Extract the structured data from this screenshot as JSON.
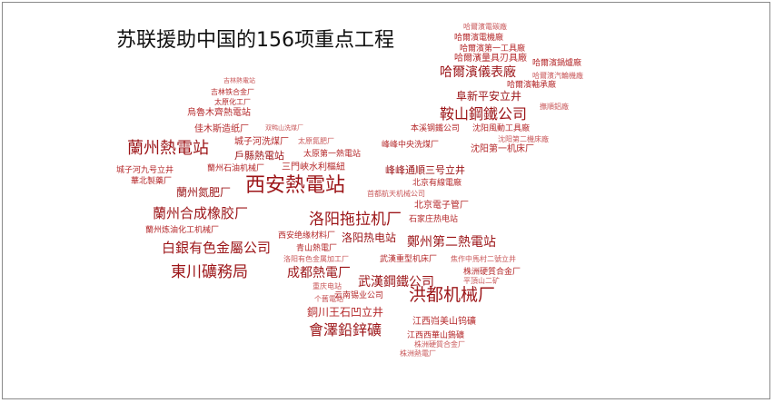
{
  "title": "苏联援助中国的156项重点工程",
  "colors": {
    "dark": "#9c1518",
    "mid": "#b5292b",
    "light": "#c9585a"
  },
  "words": [
    "哈爾濱電機廠",
    "哈爾濱電碳廠",
    "哈爾濱第一工具廠",
    "哈爾濱量具刃具廠",
    "哈爾濱儀表廠",
    "哈爾濱鍋爐廠",
    "哈爾濱軸承廠",
    "哈爾濱汽輪機廠",
    "阜新平安立井",
    "鞍山鋼鐵公司",
    "沈阳風動工具廠",
    "沈阳第二機床廠",
    "沈阳第一机床厂",
    "本溪钢鐵公司",
    "撫順鋁廠",
    "吉林熱電站",
    "吉林铁合金厂",
    "太原化工厂",
    "烏魯木齊熱電站",
    "佳木斯造纸厂",
    "双鸭山洗煤厂",
    "蘭州熱電站",
    "城子河洗煤厂",
    "太原氮肥厂",
    "戶縣熱電站",
    "太原第一熱電站",
    "峰峰中央洗煤厂",
    "城子河九号立井",
    "蘭州石油机械厂",
    "三門峽水利樞紐",
    "峰峰通順三号立井",
    "北京有線電廠",
    "華北製藥厂",
    "蘭州氮肥厂",
    "西安熱電站",
    "首都航天机械公司",
    "北京電子管厂",
    "蘭州合成橡胶厂",
    "洛阳拖拉机厂",
    "石家庄热电站",
    "蘭州炼油化工机械厂",
    "西安绝缘材料厂",
    "洛阳热电站",
    "鄭州第二熱電站",
    "白銀有色金屬公司",
    "青山熱電厂",
    "武漢重型机床厂",
    "東川礦務局",
    "成都熱電厂",
    "洛阳有色金属加工厂",
    "焦作中馬村二號立井",
    "株洲硬質合金厂",
    "武漢鋼鐵公司",
    "平頂山二矿",
    "云南锡业公司",
    "重庆电站",
    "个舊電站",
    "洪都机械厂",
    "銅川王石凹立井",
    "會澤鉛鋅礦",
    "江西岿美山钨礦",
    "江西西華山鎢礦",
    "株洲熱電厂",
    "株洲硬質合金厂"
  ]
}
